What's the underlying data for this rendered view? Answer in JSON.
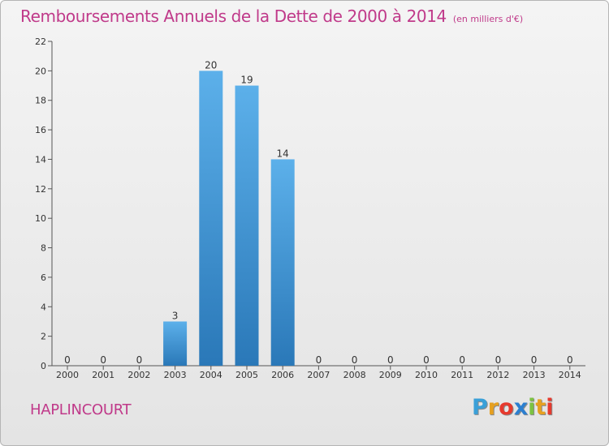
{
  "title": "Remboursements Annuels de la Dette de 2000 à 2014",
  "unit": "(en milliers d'€)",
  "commune": "HAPLINCOURT",
  "logo": {
    "letters": [
      "P",
      "r",
      "o",
      "x",
      "i",
      "t",
      "i"
    ],
    "colors": [
      "#3aa0d8",
      "#e6a020",
      "#e63a2e",
      "#2c7fd0",
      "#7cc242",
      "#e6a020",
      "#e63a2e"
    ]
  },
  "colors": {
    "title": "#c03a8a",
    "bar_light": "#5cb0ea",
    "bar_dark": "#2a78b8",
    "axis": "#555555"
  },
  "chart_data": {
    "type": "bar",
    "categories": [
      "2000",
      "2001",
      "2002",
      "2003",
      "2004",
      "2005",
      "2006",
      "2007",
      "2008",
      "2009",
      "2010",
      "2011",
      "2012",
      "2013",
      "2014"
    ],
    "values": [
      0,
      0,
      0,
      3,
      20,
      19,
      14,
      0,
      0,
      0,
      0,
      0,
      0,
      0,
      0
    ],
    "data_labels": [
      "0",
      "0",
      "0",
      "3",
      "20",
      "19",
      "14",
      "0",
      "0",
      "0",
      "0",
      "0",
      "0",
      "0",
      "0"
    ],
    "ylim": [
      0,
      22
    ],
    "yticks": [
      0,
      2,
      4,
      6,
      8,
      10,
      12,
      14,
      16,
      18,
      20,
      22
    ],
    "grid": false,
    "legend": "none"
  }
}
